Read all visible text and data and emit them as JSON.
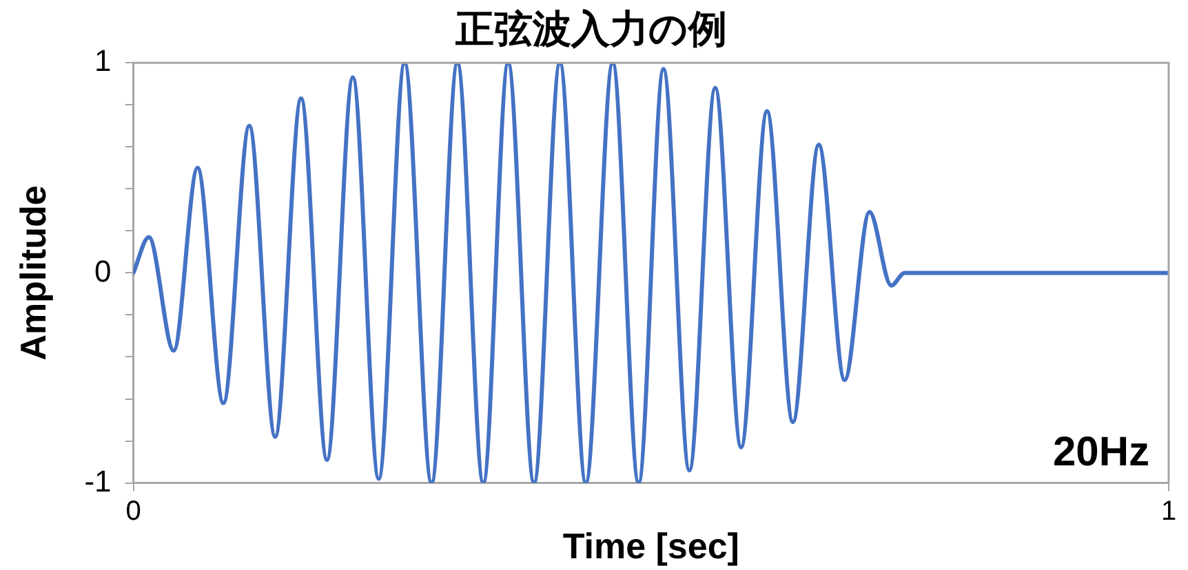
{
  "chart_data": {
    "type": "line",
    "title": "正弦波入力の例",
    "xlabel": "Time [sec]",
    "ylabel": "Amplitude",
    "annotations": [
      "20Hz"
    ],
    "x": [
      0,
      0.015,
      0.039,
      0.062,
      0.087,
      0.112,
      0.137,
      0.162,
      0.187,
      0.212,
      0.237,
      0.262,
      0.288,
      0.313,
      0.338,
      0.362,
      0.387,
      0.412,
      0.437,
      0.463,
      0.488,
      0.512,
      0.537,
      0.562,
      0.587,
      0.612,
      0.637,
      0.662,
      0.687,
      0.711,
      0.732,
      0.745,
      1
    ],
    "series": [
      {
        "color": "#4472c4",
        "values": [
          0,
          0.17,
          -0.37,
          0.5,
          -0.62,
          0.7,
          -0.78,
          0.83,
          -0.89,
          0.93,
          -0.98,
          1,
          -1,
          1,
          -1,
          1,
          -1,
          1,
          -1,
          1,
          -1,
          0.97,
          -0.94,
          0.88,
          -0.83,
          0.77,
          -0.71,
          0.61,
          -0.51,
          0.29,
          -0.06,
          0,
          0
        ]
      }
    ],
    "xlim": [
      0,
      1
    ],
    "xticks": [
      0,
      1
    ],
    "ylim": [
      -1,
      1
    ],
    "yticks": [
      -1,
      {
        "value": -0.8,
        "label": null
      },
      {
        "value": -0.6,
        "label": null
      },
      {
        "value": -0.4,
        "label": null
      },
      {
        "value": -0.2,
        "label": null
      },
      0,
      {
        "value": 0.2,
        "label": null
      },
      {
        "value": 0.4,
        "label": null
      },
      {
        "value": 0.6,
        "label": null
      },
      {
        "value": 0.8,
        "label": null
      },
      1
    ],
    "grid": false,
    "legend": false,
    "marker": "none",
    "line_style": "solid"
  }
}
